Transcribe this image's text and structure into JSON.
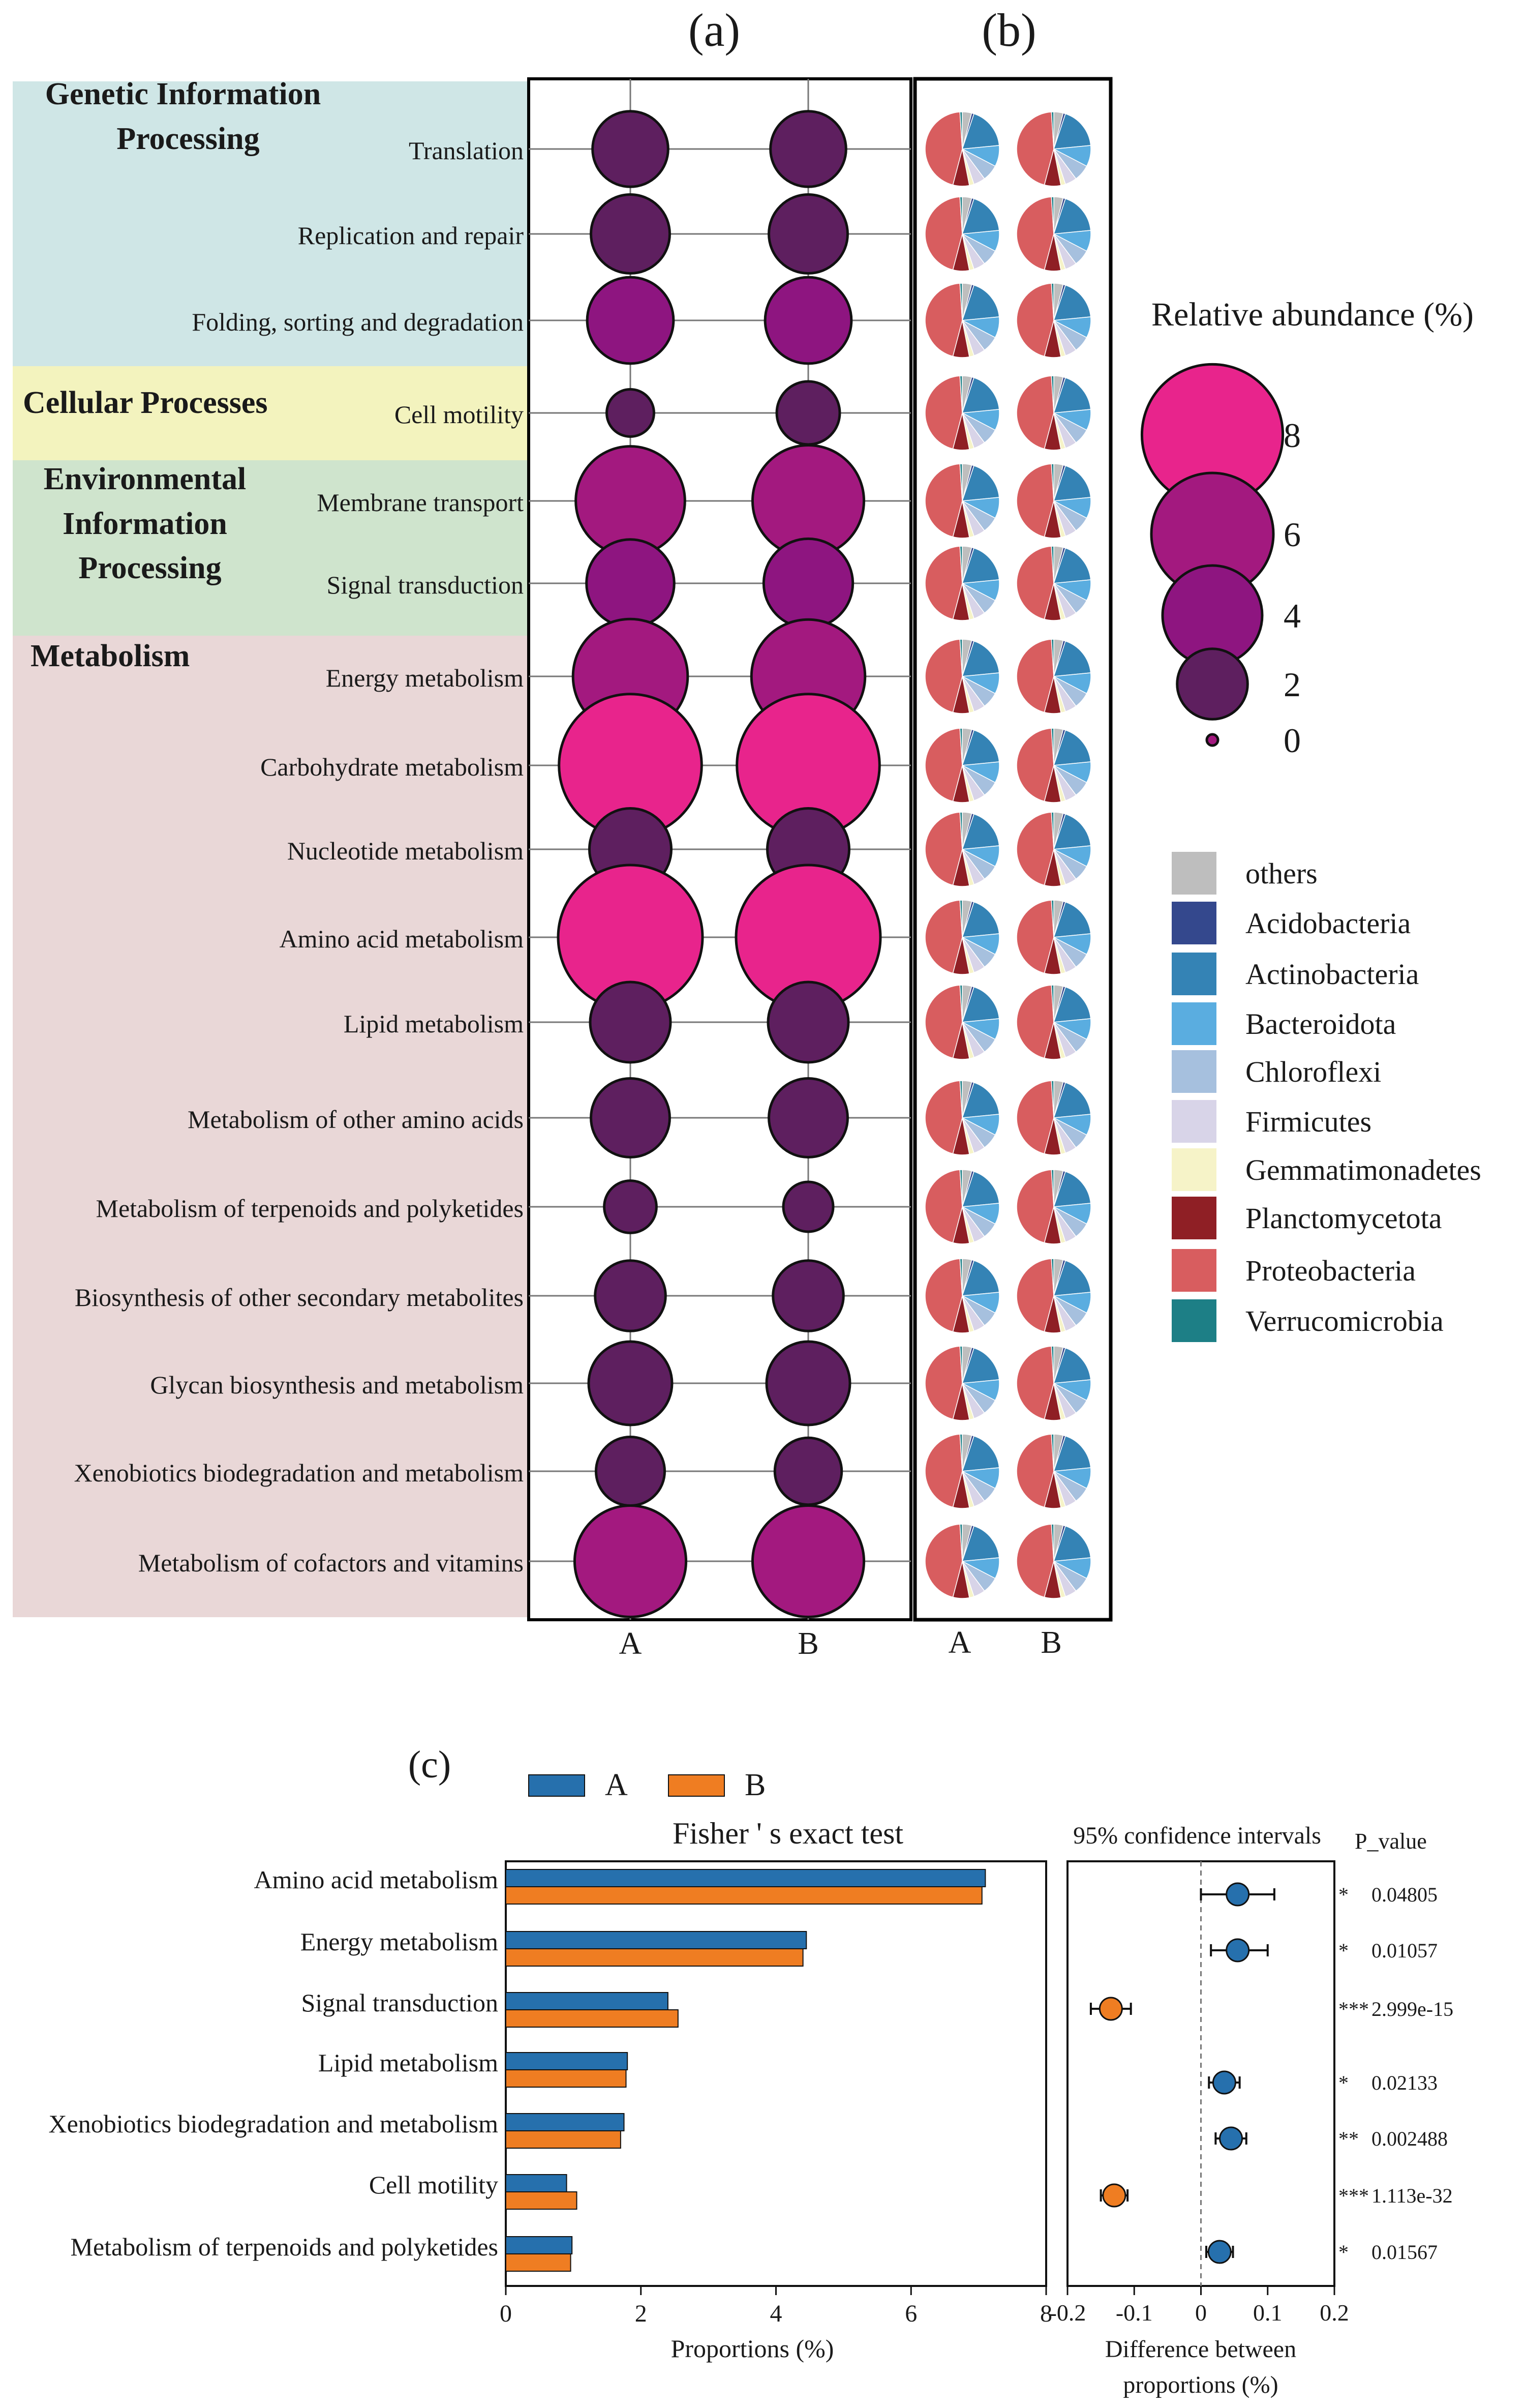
{
  "panel_labels": {
    "a": "(a)",
    "b": "(b)",
    "c": "(c)"
  },
  "colors": {
    "genetic_bg": "#cfe6e6",
    "cellular_bg": "#f3f3be",
    "environmental_bg": "#cfe4cd",
    "metabolism_bg": "#e9d7d7",
    "bubble_fill_low": "#5e1f5f",
    "bubble_fill_mid": "#a3197f",
    "bubble_fill_high": "#e8248c",
    "bar_a": "#2670ad",
    "bar_b": "#ef7d22",
    "significance": "#d43030"
  },
  "chart_data": [
    {
      "id": "a",
      "type": "scatter",
      "title": "(a)",
      "categories": [
        "Genetic Information Processing",
        "Cellular Processes",
        "Environmental Information Processing",
        "Metabolism"
      ],
      "category_names": [
        "Genetic Information Processing",
        "Cellular Processes",
        "Environmental Information Processing",
        "Metabolism"
      ],
      "pathways": [
        {
          "name": "Translation",
          "category": 0,
          "A": 2.3,
          "B": 2.3
        },
        {
          "name": "Replication and repair",
          "category": 0,
          "A": 2.5,
          "B": 2.5
        },
        {
          "name": "Folding, sorting and degradation",
          "category": 0,
          "A": 3.0,
          "B": 3.0
        },
        {
          "name": "Cell motility",
          "category": 1,
          "A": 0.9,
          "B": 1.6
        },
        {
          "name": "Membrane transport",
          "category": 2,
          "A": 4.8,
          "B": 5.0
        },
        {
          "name": "Signal transduction",
          "category": 2,
          "A": 3.1,
          "B": 3.2
        },
        {
          "name": "Energy metabolism",
          "category": 3,
          "A": 5.3,
          "B": 5.2
        },
        {
          "name": "Carbohydrate metabolism",
          "category": 3,
          "A": 8.2,
          "B": 8.2
        },
        {
          "name": "Nucleotide metabolism",
          "category": 3,
          "A": 2.7,
          "B": 2.7
        },
        {
          "name": "Amino acid metabolism",
          "category": 3,
          "A": 8.4,
          "B": 8.4
        },
        {
          "name": "Lipid metabolism",
          "category": 3,
          "A": 2.6,
          "B": 2.6
        },
        {
          "name": "Metabolism of other amino acids",
          "category": 3,
          "A": 2.5,
          "B": 2.5
        },
        {
          "name": "Metabolism of terpenoids and polyketides",
          "category": 3,
          "A": 1.1,
          "B": 1.0
        },
        {
          "name": "Biosynthesis of other secondary metabolites",
          "category": 3,
          "A": 2.0,
          "B": 2.0
        },
        {
          "name": "Glycan biosynthesis and metabolism",
          "category": 3,
          "A": 2.8,
          "B": 2.8
        },
        {
          "name": "Xenobiotics biodegradation and metabolism",
          "category": 3,
          "A": 1.9,
          "B": 1.8
        },
        {
          "name": "Metabolism of cofactors and vitamins",
          "category": 3,
          "A": 5.0,
          "B": 5.0
        }
      ],
      "series": [
        {
          "name": "A"
        },
        {
          "name": "B"
        }
      ],
      "xlabel": "",
      "ylabel": "",
      "legend_title": "Relative abundance (%)",
      "legend_values": [
        8,
        6,
        4,
        2,
        0
      ]
    },
    {
      "id": "b",
      "type": "pie",
      "title": "(b)",
      "samples": [
        "A",
        "B"
      ],
      "taxa": [
        "others",
        "Acidobacteria",
        "Actinobacteria",
        "Bacteroidota",
        "Chloroflexi",
        "Firmicutes",
        "Gemmatimonadetes",
        "Planctomycetota",
        "Proteobacteria",
        "Verrucomicrobia"
      ],
      "taxa_colors": [
        "#bebebe",
        "#34488d",
        "#3483b5",
        "#5aade0",
        "#a6c0de",
        "#d8d4e8",
        "#f6f3c8",
        "#8f1f25",
        "#d85d5f",
        "#1d7f86"
      ],
      "typical_composition_percent": [
        4,
        1,
        18,
        9,
        7,
        5,
        2,
        7,
        44,
        1
      ],
      "pies_per_sample": 17
    },
    {
      "id": "c",
      "type": "bar",
      "title": "Fisher ' s exact test",
      "categories": [
        "Amino acid metabolism",
        "Energy metabolism",
        "Signal transduction",
        "Lipid metabolism",
        "Xenobiotics biodegradation and metabolism",
        "Cell motility",
        "Metabolism of terpenoids and polyketides"
      ],
      "series": [
        {
          "name": "A",
          "values": [
            7.1,
            4.45,
            2.4,
            1.8,
            1.75,
            0.9,
            0.98
          ]
        },
        {
          "name": "B",
          "values": [
            7.05,
            4.4,
            2.55,
            1.78,
            1.7,
            1.05,
            0.96
          ]
        }
      ],
      "xlabel": "Proportions (%)",
      "ylabel": "",
      "xlim": [
        0,
        8
      ],
      "xticks": [
        0,
        2,
        4,
        6,
        8
      ],
      "ci_title": "95% confidence intervals",
      "ci_xlabel": "Difference between proportions (%)",
      "ci_xlim": [
        -0.2,
        0.2
      ],
      "ci_xticks": [
        "-0.2",
        "-0.1",
        "0",
        "0.1",
        "0.2"
      ],
      "ci_points": [
        {
          "diff": 0.055,
          "low": 0.0,
          "high": 0.11,
          "group": "A"
        },
        {
          "diff": 0.055,
          "low": 0.015,
          "high": 0.1,
          "group": "A"
        },
        {
          "diff": -0.135,
          "low": -0.165,
          "high": -0.105,
          "group": "B"
        },
        {
          "diff": 0.035,
          "low": 0.012,
          "high": 0.058,
          "group": "A"
        },
        {
          "diff": 0.045,
          "low": 0.022,
          "high": 0.068,
          "group": "A"
        },
        {
          "diff": -0.13,
          "low": -0.15,
          "high": -0.11,
          "group": "B"
        },
        {
          "diff": 0.028,
          "low": 0.008,
          "high": 0.048,
          "group": "A"
        }
      ],
      "p_title": "P_value",
      "p_values": [
        "0.04805",
        "0.01057",
        "2.999e-15",
        "0.02133",
        "0.002488",
        "1.113e-32",
        "0.01567"
      ],
      "significance": [
        "*",
        "*",
        "***",
        "*",
        "**",
        "***",
        "*"
      ]
    }
  ]
}
